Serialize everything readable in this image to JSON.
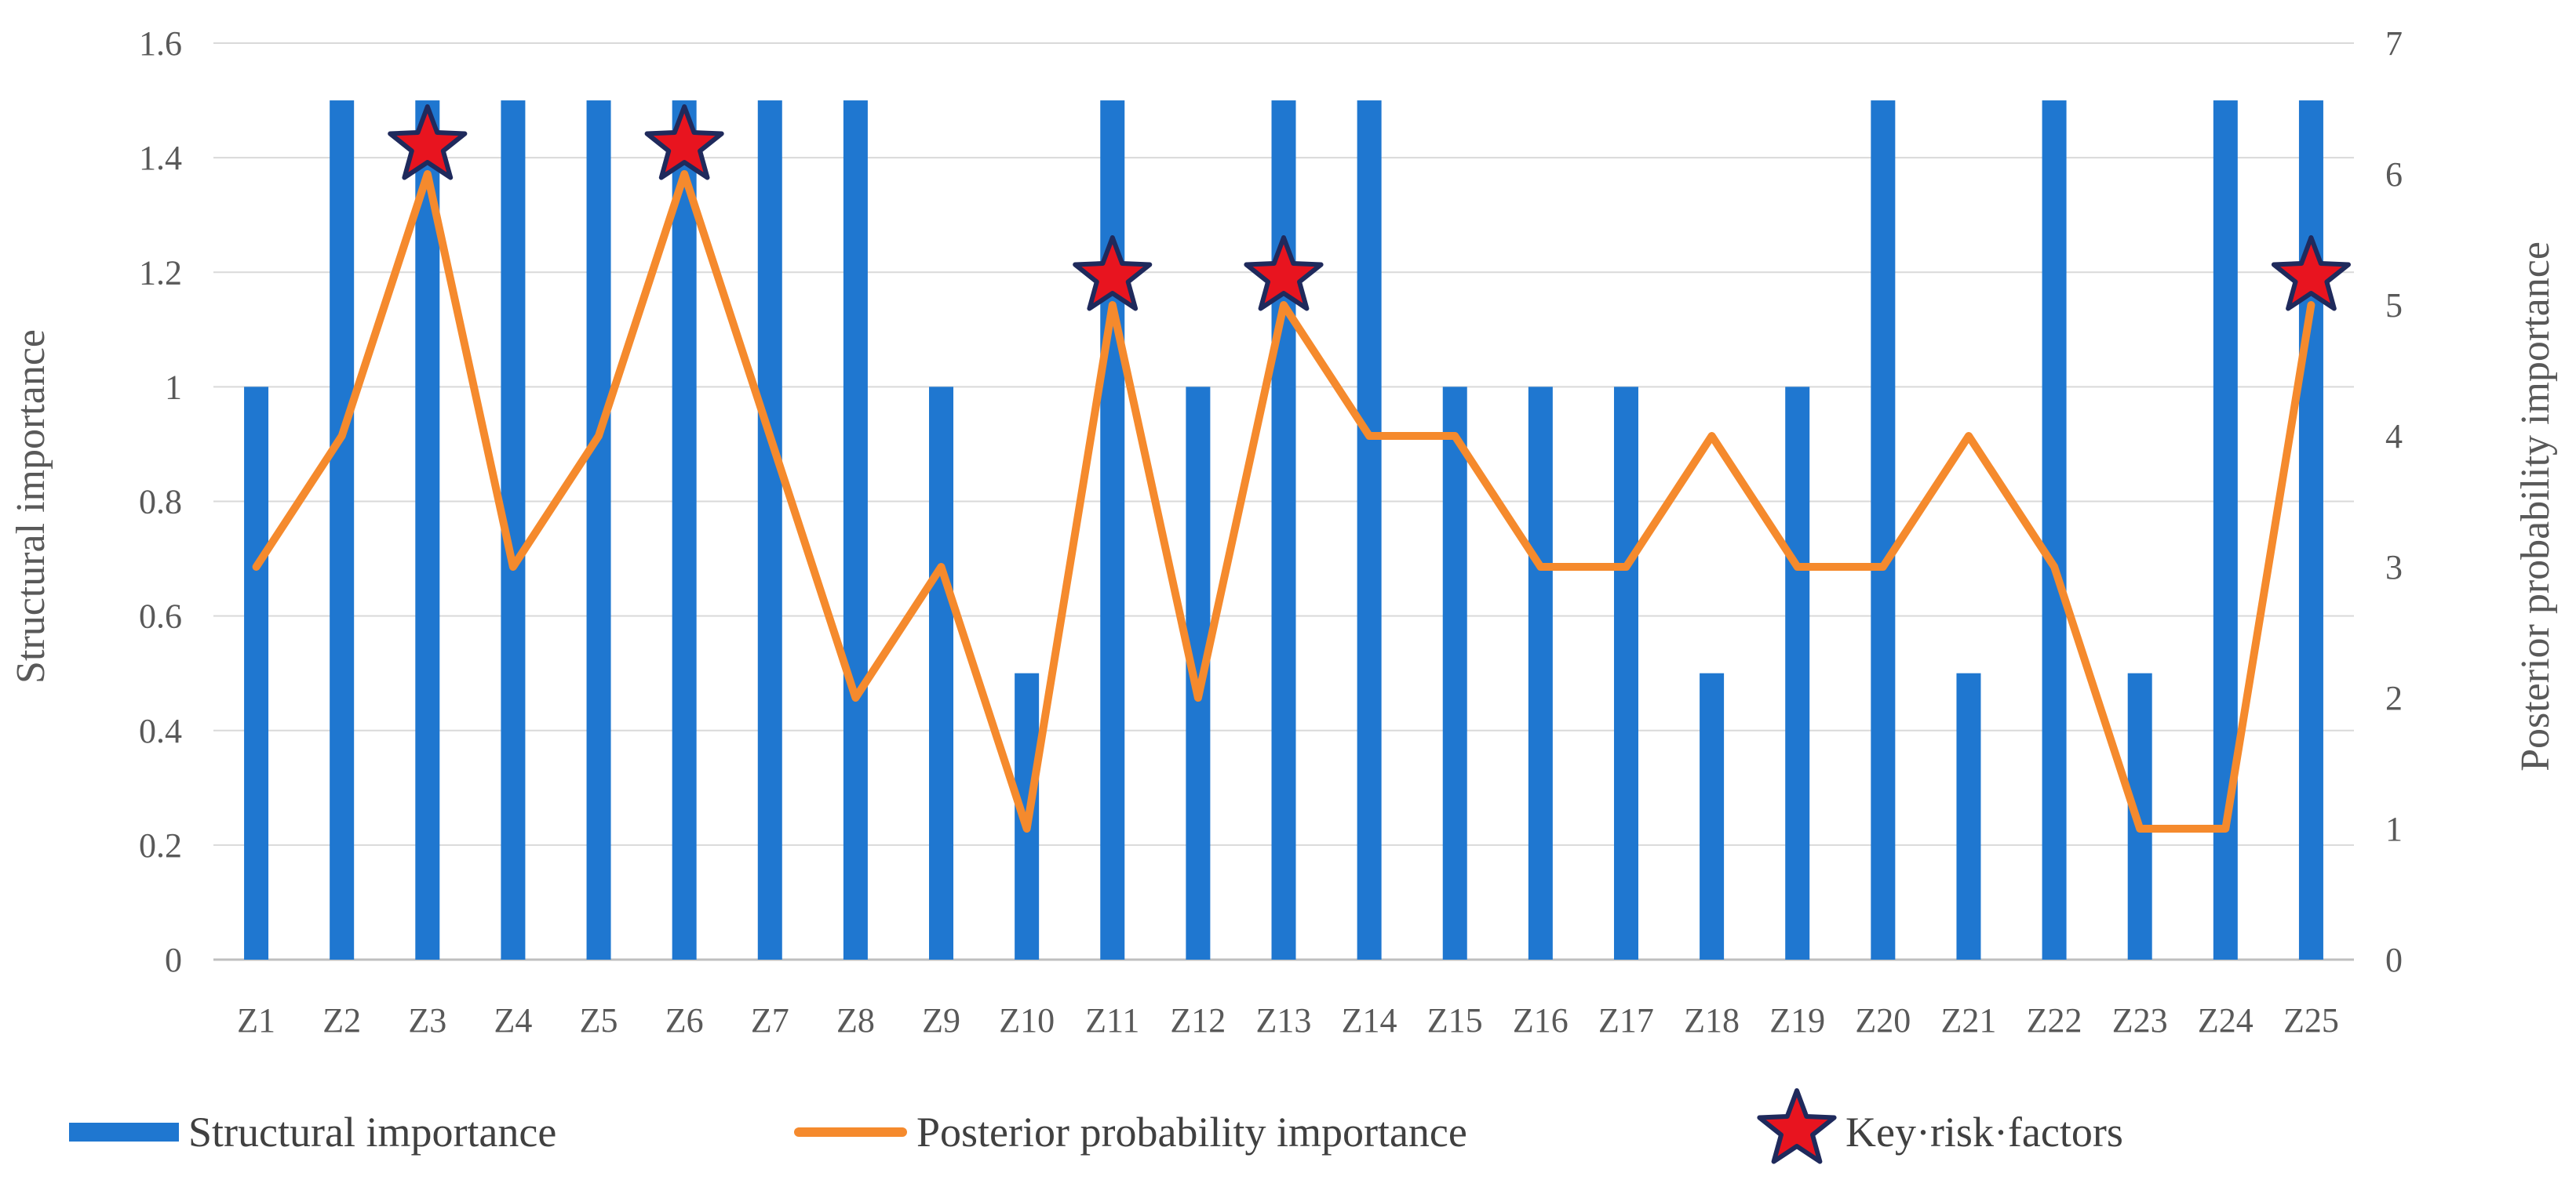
{
  "chart_data": {
    "type": "bar",
    "categories": [
      "Z1",
      "Z2",
      "Z3",
      "Z4",
      "Z5",
      "Z6",
      "Z7",
      "Z8",
      "Z9",
      "Z10",
      "Z11",
      "Z12",
      "Z13",
      "Z14",
      "Z15",
      "Z16",
      "Z17",
      "Z18",
      "Z19",
      "Z20",
      "Z21",
      "Z22",
      "Z23",
      "Z24",
      "Z25"
    ],
    "series": [
      {
        "name": "Structural importance",
        "type": "bar",
        "axis": "left",
        "color": "#1f77d0",
        "values": [
          1,
          1.5,
          1.5,
          1.5,
          1.5,
          1.5,
          1.5,
          1.5,
          1,
          0.5,
          1.5,
          1,
          1.5,
          1.5,
          1,
          1,
          1,
          0.5,
          1,
          1.5,
          0.5,
          1.5,
          0.5,
          1.5,
          1.5
        ]
      },
      {
        "name": "Posterior probability importance",
        "type": "line",
        "axis": "right",
        "color": "#f58a2d",
        "values": [
          3,
          4,
          6,
          3,
          4,
          6,
          4,
          2,
          3,
          1,
          5,
          2,
          5,
          4,
          4,
          3,
          3,
          4,
          3,
          3,
          4,
          3,
          1,
          1,
          5
        ]
      },
      {
        "name": "Key·risk·factors",
        "type": "marker",
        "marker": "star",
        "color": "#e8141f",
        "categories": [
          "Z3",
          "Z6",
          "Z11",
          "Z13",
          "Z25"
        ]
      }
    ],
    "ylabel": "Structural importance",
    "y2label": "Posterior probability importance",
    "ylim": [
      0,
      1.6
    ],
    "y2lim": [
      0,
      7
    ],
    "yticks": [
      "0",
      "0.2",
      "0.4",
      "0.6",
      "0.8",
      "1",
      "1.2",
      "1.4",
      "1.6"
    ],
    "y2ticks": [
      "0",
      "1",
      "2",
      "3",
      "4",
      "5",
      "6",
      "7"
    ],
    "grid": true,
    "legend": "bottom"
  }
}
